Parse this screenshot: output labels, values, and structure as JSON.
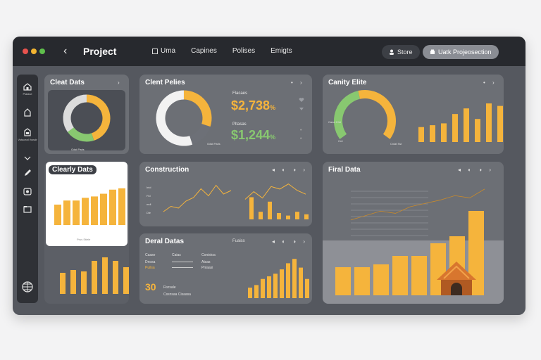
{
  "window": {
    "back_glyph": "‹",
    "title": "Project",
    "tabs": [
      {
        "label": "Uma",
        "active": true
      },
      {
        "label": "Capines",
        "active": false
      },
      {
        "label": "Polises",
        "active": false
      },
      {
        "label": "Emigts",
        "active": false
      }
    ],
    "share_button": {
      "label": "Store",
      "icon": "person-icon"
    },
    "primary_button": {
      "label": "Uatk Projeosection",
      "icon": "box-icon"
    }
  },
  "colors": {
    "accent": "#f5b43c",
    "green": "#88c870",
    "bg": "#55585f",
    "titlebar": "#27292e",
    "panel": "#6c6f75"
  },
  "sidebar": {
    "items": [
      {
        "icon": "home-icon",
        "label": "Pialase"
      },
      {
        "icon": "lock-icon",
        "label": ""
      },
      {
        "icon": "document-icon",
        "label": "Vstaceal lhosdr"
      },
      {
        "icon": "chevron-down-icon",
        "label": ""
      },
      {
        "icon": "pen-icon",
        "label": ""
      },
      {
        "icon": "gauge-icon",
        "label": ""
      },
      {
        "icon": "folder-icon",
        "label": ""
      },
      {
        "icon": "globe-icon",
        "label": ""
      }
    ]
  },
  "panels": {
    "client_data": {
      "title": "Cleat Dats",
      "more_glyph": "›",
      "legend": "Gdst Paris"
    },
    "clent_pelies": {
      "title": "Clent Pelies",
      "metric1_label": "Flacaes",
      "metric1_value": "$2,738",
      "metric1_suffix": "%",
      "metric2_label": "Pltasas",
      "metric2_value": "$1,244",
      "metric2_suffix": "%",
      "legend": "Gdst Paris"
    },
    "canity_elite": {
      "title": "Canity Elite",
      "gauge_label_left": "Cana Chit",
      "gauge_label_bottom": "Crrt",
      "gauge_label_right": "Cnlat Sst"
    },
    "clearly_dats": {
      "title": "Clearly Dats",
      "legend": "Prus Stiele"
    },
    "construction": {
      "title": "Construction",
      "controls": "◂ ◐ ◑ ›",
      "ytick_labels": [
        "Inld",
        "Fld",
        "mdl",
        "Dle"
      ]
    },
    "final_data": {
      "title": "Firal Data",
      "controls": "◂ ◐ ◑ ›"
    },
    "deral_datas": {
      "title": "Deral Datas",
      "filter_label": "Fuaiss",
      "controls": "◂ ◐ ◑ ›",
      "col_headers": [
        "Caase",
        "Caias",
        "Conistoa"
      ],
      "rows": [
        {
          "c1": "Dnosa",
          "c2": "Atsas"
        },
        {
          "c1": "Puilsa",
          "c2": "Pnlaasi"
        }
      ],
      "big_number": "30",
      "big_sub": "Fisrsale",
      "foot": "Cssnsaa  Cisaasa"
    }
  },
  "chart_data": [
    {
      "type": "pie",
      "name": "cleat-dats-donut",
      "values": [
        45,
        20,
        35
      ],
      "colors": [
        "#f5b43c",
        "#88c870",
        "#dcdcdc"
      ]
    },
    {
      "type": "pie",
      "name": "clent-pelies-donut",
      "values": [
        30,
        15,
        55
      ],
      "colors": [
        "#f5b43c",
        "#6d7077",
        "#f2f2f2"
      ]
    },
    {
      "type": "pie",
      "name": "canity-elite-gauge",
      "values": [
        45,
        55
      ],
      "colors": [
        "#88c870",
        "#f5b43c"
      ]
    },
    {
      "type": "bar",
      "name": "canity-elite-bars",
      "values": [
        24,
        27,
        30,
        45,
        54,
        37,
        62,
        58
      ],
      "ylim": [
        0,
        70
      ]
    },
    {
      "type": "bar",
      "name": "clearly-dats-bars",
      "values": [
        30,
        36,
        36,
        40,
        42,
        46,
        52,
        54
      ],
      "ylim": [
        0,
        60
      ]
    },
    {
      "type": "bar",
      "name": "left-bottom-bars",
      "values": [
        30,
        34,
        32,
        47,
        52,
        47,
        38
      ],
      "ylim": [
        0,
        60
      ]
    },
    {
      "type": "line",
      "name": "construction-line",
      "values": [
        2,
        5,
        4,
        8,
        10,
        15,
        11,
        17,
        12,
        14
      ],
      "ylim": [
        0,
        20
      ]
    },
    {
      "type": "line",
      "name": "construction-line-2",
      "values": [
        8,
        14,
        9,
        18,
        16,
        20,
        15,
        12
      ],
      "ylim": [
        0,
        22
      ]
    },
    {
      "type": "bar",
      "name": "construction-bars",
      "values": [
        35,
        12,
        28,
        10,
        6,
        12,
        8,
        10
      ],
      "ylim": [
        0,
        40
      ]
    },
    {
      "type": "bar",
      "name": "deral-datas-bars",
      "values": [
        12,
        15,
        22,
        25,
        28,
        33,
        40,
        45,
        35,
        22
      ],
      "ylim": [
        0,
        50
      ]
    },
    {
      "type": "line",
      "name": "firal-data-line",
      "values": [
        30,
        34,
        38,
        36,
        42,
        45,
        48,
        52,
        50,
        58
      ],
      "ylim": [
        0,
        70
      ]
    },
    {
      "type": "bar",
      "name": "firal-data-bars",
      "values": [
        20,
        20,
        22,
        28,
        28,
        37,
        42,
        60
      ],
      "ylim": [
        0,
        70
      ]
    }
  ]
}
